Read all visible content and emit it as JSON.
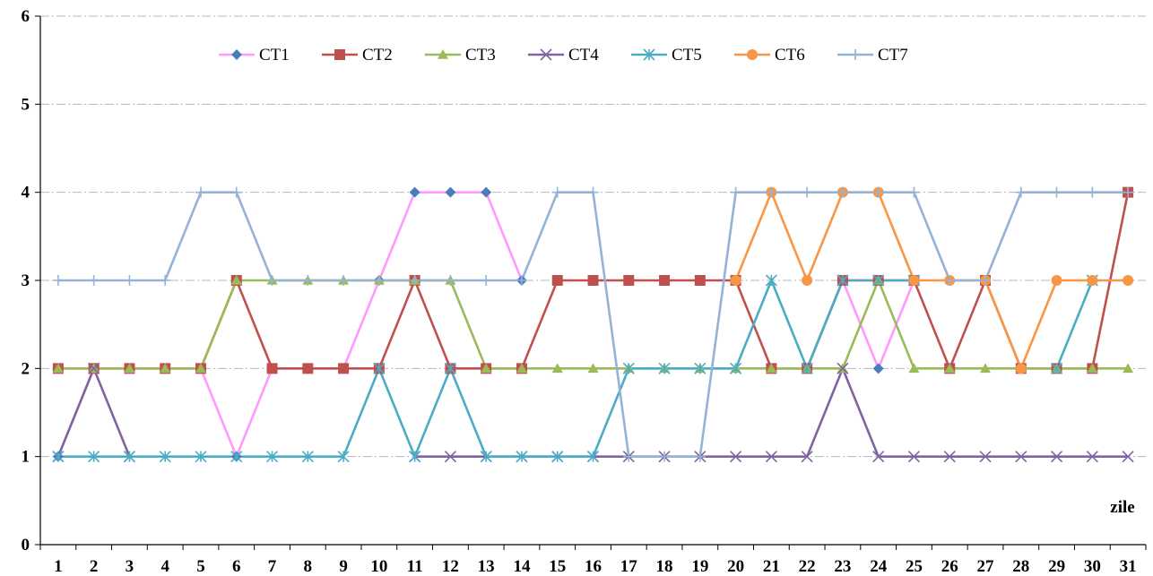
{
  "chart_data": {
    "type": "line",
    "title": "",
    "xlabel": "zile",
    "ylabel": "",
    "x": [
      1,
      2,
      3,
      4,
      5,
      6,
      7,
      8,
      9,
      10,
      11,
      12,
      13,
      14,
      15,
      16,
      17,
      18,
      19,
      20,
      21,
      22,
      23,
      24,
      25,
      26,
      27,
      28,
      29,
      30,
      31
    ],
    "ylim": [
      0,
      6
    ],
    "yticks": [
      0,
      1,
      2,
      3,
      4,
      5,
      6
    ],
    "grid": "horizontal dash-dot",
    "legend_position": "top",
    "series": [
      {
        "name": "CT1",
        "color": "#FF99FF",
        "marker_color": "#4A7EBB",
        "marker": "diamond",
        "values": [
          1,
          2,
          2,
          2,
          2,
          1,
          2,
          2,
          2,
          3,
          4,
          4,
          4,
          3,
          null,
          null,
          null,
          null,
          null,
          null,
          null,
          2,
          3,
          2,
          3,
          null,
          null,
          null,
          null,
          null,
          3
        ]
      },
      {
        "name": "CT2",
        "color": "#C0504D",
        "marker_color": "#C0504D",
        "marker": "square",
        "values": [
          2,
          2,
          2,
          2,
          2,
          3,
          2,
          2,
          2,
          2,
          3,
          2,
          2,
          2,
          3,
          3,
          3,
          3,
          3,
          3,
          2,
          2,
          3,
          3,
          3,
          2,
          3,
          2,
          2,
          2,
          4
        ]
      },
      {
        "name": "CT3",
        "color": "#9BBB59",
        "marker_color": "#9BBB59",
        "marker": "triangle",
        "values": [
          2,
          2,
          2,
          2,
          2,
          3,
          3,
          3,
          3,
          3,
          3,
          3,
          2,
          2,
          2,
          2,
          2,
          2,
          2,
          2,
          2,
          2,
          2,
          3,
          2,
          2,
          2,
          2,
          2,
          2,
          2
        ]
      },
      {
        "name": "CT4",
        "color": "#8064A2",
        "marker_color": "#8064A2",
        "marker": "x",
        "values": [
          1,
          2,
          1,
          null,
          null,
          null,
          null,
          null,
          null,
          null,
          1,
          1,
          1,
          1,
          1,
          1,
          1,
          1,
          1,
          1,
          1,
          1,
          2,
          1,
          1,
          1,
          1,
          1,
          1,
          1,
          1
        ]
      },
      {
        "name": "CT5",
        "color": "#4BACC6",
        "marker_color": "#4BACC6",
        "marker": "star",
        "values": [
          1,
          1,
          1,
          1,
          1,
          1,
          1,
          1,
          1,
          2,
          1,
          2,
          1,
          1,
          1,
          1,
          2,
          2,
          2,
          2,
          3,
          2,
          3,
          3,
          3,
          null,
          null,
          null,
          2,
          3,
          null
        ]
      },
      {
        "name": "CT6",
        "color": "#F79646",
        "marker_color": "#F79646",
        "marker": "circle",
        "values": [
          null,
          null,
          null,
          null,
          null,
          null,
          null,
          null,
          null,
          null,
          null,
          null,
          null,
          null,
          null,
          null,
          null,
          null,
          null,
          3,
          4,
          3,
          4,
          4,
          3,
          3,
          3,
          2,
          3,
          3,
          3
        ]
      },
      {
        "name": "CT7",
        "color": "#95B3D7",
        "marker_color": "#95B3D7",
        "marker": "plus",
        "values": [
          3,
          3,
          3,
          3,
          4,
          4,
          3,
          3,
          3,
          3,
          3,
          3,
          3,
          3,
          4,
          4,
          1,
          1,
          1,
          4,
          4,
          4,
          4,
          4,
          4,
          3,
          3,
          4,
          4,
          4,
          4
        ]
      }
    ]
  }
}
